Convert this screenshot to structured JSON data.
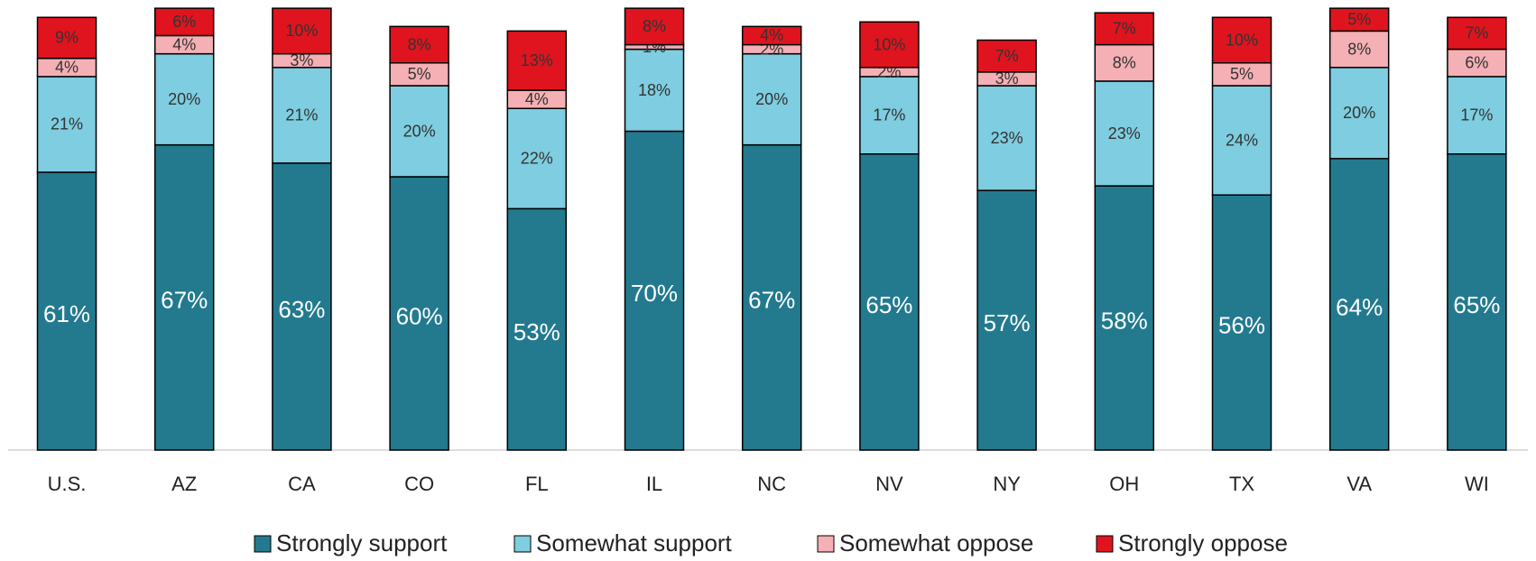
{
  "chart_data": {
    "type": "stacked_bar",
    "categories": [
      "U.S.",
      "AZ",
      "CA",
      "CO",
      "FL",
      "IL",
      "NC",
      "NV",
      "NY",
      "OH",
      "TX",
      "VA",
      "WI"
    ],
    "series": [
      {
        "name": "Strongly support",
        "color": "#237a8f",
        "values": [
          61,
          67,
          63,
          60,
          53,
          70,
          67,
          65,
          57,
          58,
          56,
          64,
          65
        ],
        "value_labels": [
          "61%",
          "67%",
          "63%",
          "60%",
          "53%",
          "70%",
          "67%",
          "65%",
          "57%",
          "58%",
          "56%",
          "64%",
          "65%"
        ]
      },
      {
        "name": "Somewhat support",
        "color": "#7ecde0",
        "values": [
          21,
          20,
          21,
          20,
          22,
          18,
          20,
          17,
          23,
          23,
          24,
          20,
          17
        ],
        "value_labels": [
          "21%",
          "20%",
          "21%",
          "20%",
          "22%",
          "18%",
          "20%",
          "17%",
          "23%",
          "23%",
          "24%",
          "20%",
          "17%"
        ]
      },
      {
        "name": "Somewhat oppose",
        "color": "#f4b0b5",
        "values": [
          4,
          4,
          3,
          5,
          4,
          1,
          2,
          2,
          3,
          8,
          5,
          8,
          6
        ],
        "value_labels": [
          "4%",
          "4%",
          "3%",
          "5%",
          "4%",
          "1%",
          "2%",
          "2%",
          "3%",
          "8%",
          "5%",
          "8%",
          "6%"
        ]
      },
      {
        "name": "Strongly oppose",
        "color": "#e0141e",
        "values": [
          9,
          6,
          10,
          8,
          13,
          8,
          4,
          10,
          7,
          7,
          10,
          5,
          7
        ],
        "value_labels": [
          "9%",
          "6%",
          "10%",
          "8%",
          "13%",
          "8%",
          "4%",
          "10%",
          "7%",
          "7%",
          "10%",
          "5%",
          "7%"
        ]
      }
    ]
  }
}
